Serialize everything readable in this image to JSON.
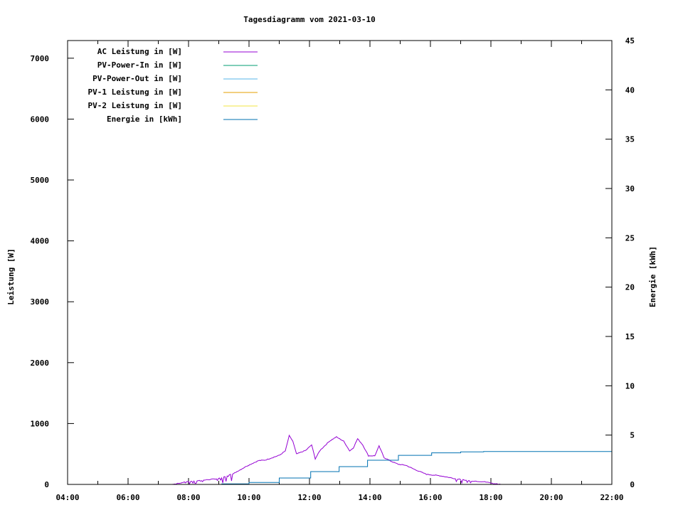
{
  "chart_data": {
    "type": "line",
    "title": "Tagesdiagramm vom 2021-03-10",
    "xlabel": "",
    "ylabel": "Leistung [W]",
    "y2label": "Energie [kWh]",
    "xlim": [
      4,
      22
    ],
    "ylim": [
      0,
      7290
    ],
    "y2lim": [
      0,
      45
    ],
    "grid": false,
    "legend_position": "top-left",
    "x_ticks": [
      "04:00",
      "06:00",
      "08:00",
      "10:00",
      "12:00",
      "14:00",
      "16:00",
      "18:00",
      "20:00",
      "22:00"
    ],
    "y_ticks": [
      "0",
      "1000",
      "2000",
      "3000",
      "4000",
      "5000",
      "6000",
      "7000"
    ],
    "y2_ticks": [
      "0",
      "5",
      "10",
      "15",
      "20",
      "25",
      "30",
      "35",
      "40",
      "45"
    ],
    "series": [
      {
        "name": "AC Leistung in [W]",
        "color": "#9400d3",
        "axis": "y",
        "x": [
          7.47,
          8.0,
          8.5,
          9.06,
          9.53,
          9.92,
          10.31,
          10.54,
          11.01,
          11.2,
          11.33,
          11.45,
          11.57,
          11.88,
          12.07,
          12.19,
          12.35,
          12.66,
          12.89,
          13.13,
          13.33,
          13.45,
          13.59,
          13.76,
          13.95,
          14.16,
          14.3,
          14.47,
          14.7,
          14.94,
          15.18,
          15.48,
          15.88,
          16.35,
          16.82,
          17.29,
          17.76,
          18.19,
          18.35
        ],
        "y": [
          0,
          50,
          70,
          100,
          190,
          300,
          390,
          400,
          480,
          550,
          800,
          710,
          500,
          560,
          650,
          420,
          560,
          710,
          780,
          710,
          550,
          600,
          750,
          650,
          470,
          470,
          630,
          440,
          380,
          330,
          315,
          245,
          165,
          140,
          95,
          60,
          45,
          10,
          0
        ]
      },
      {
        "name": "PV-Power-In in [W]",
        "color": "#009e73",
        "axis": "y",
        "x": [],
        "y": []
      },
      {
        "name": "PV-Power-Out in [W]",
        "color": "#56b4e9",
        "axis": "y",
        "x": [],
        "y": []
      },
      {
        "name": "PV-1 Leistung in [W]",
        "color": "#e69f00",
        "axis": "y",
        "x": [],
        "y": []
      },
      {
        "name": "PV-2 Leistung in [W]",
        "color": "#f0e442",
        "axis": "y",
        "x": [],
        "y": []
      },
      {
        "name": "Energie in [kWh]",
        "color": "#0072b2",
        "axis": "y2",
        "x": [
          7.47,
          9.1,
          10.0,
          11.0,
          12.04,
          12.98,
          13.92,
          14.94,
          16.04,
          17.0,
          17.76,
          22.0
        ],
        "y": [
          0,
          0.05,
          0.2,
          0.65,
          1.3,
          1.8,
          2.45,
          2.95,
          3.2,
          3.3,
          3.34,
          3.36
        ]
      }
    ]
  }
}
